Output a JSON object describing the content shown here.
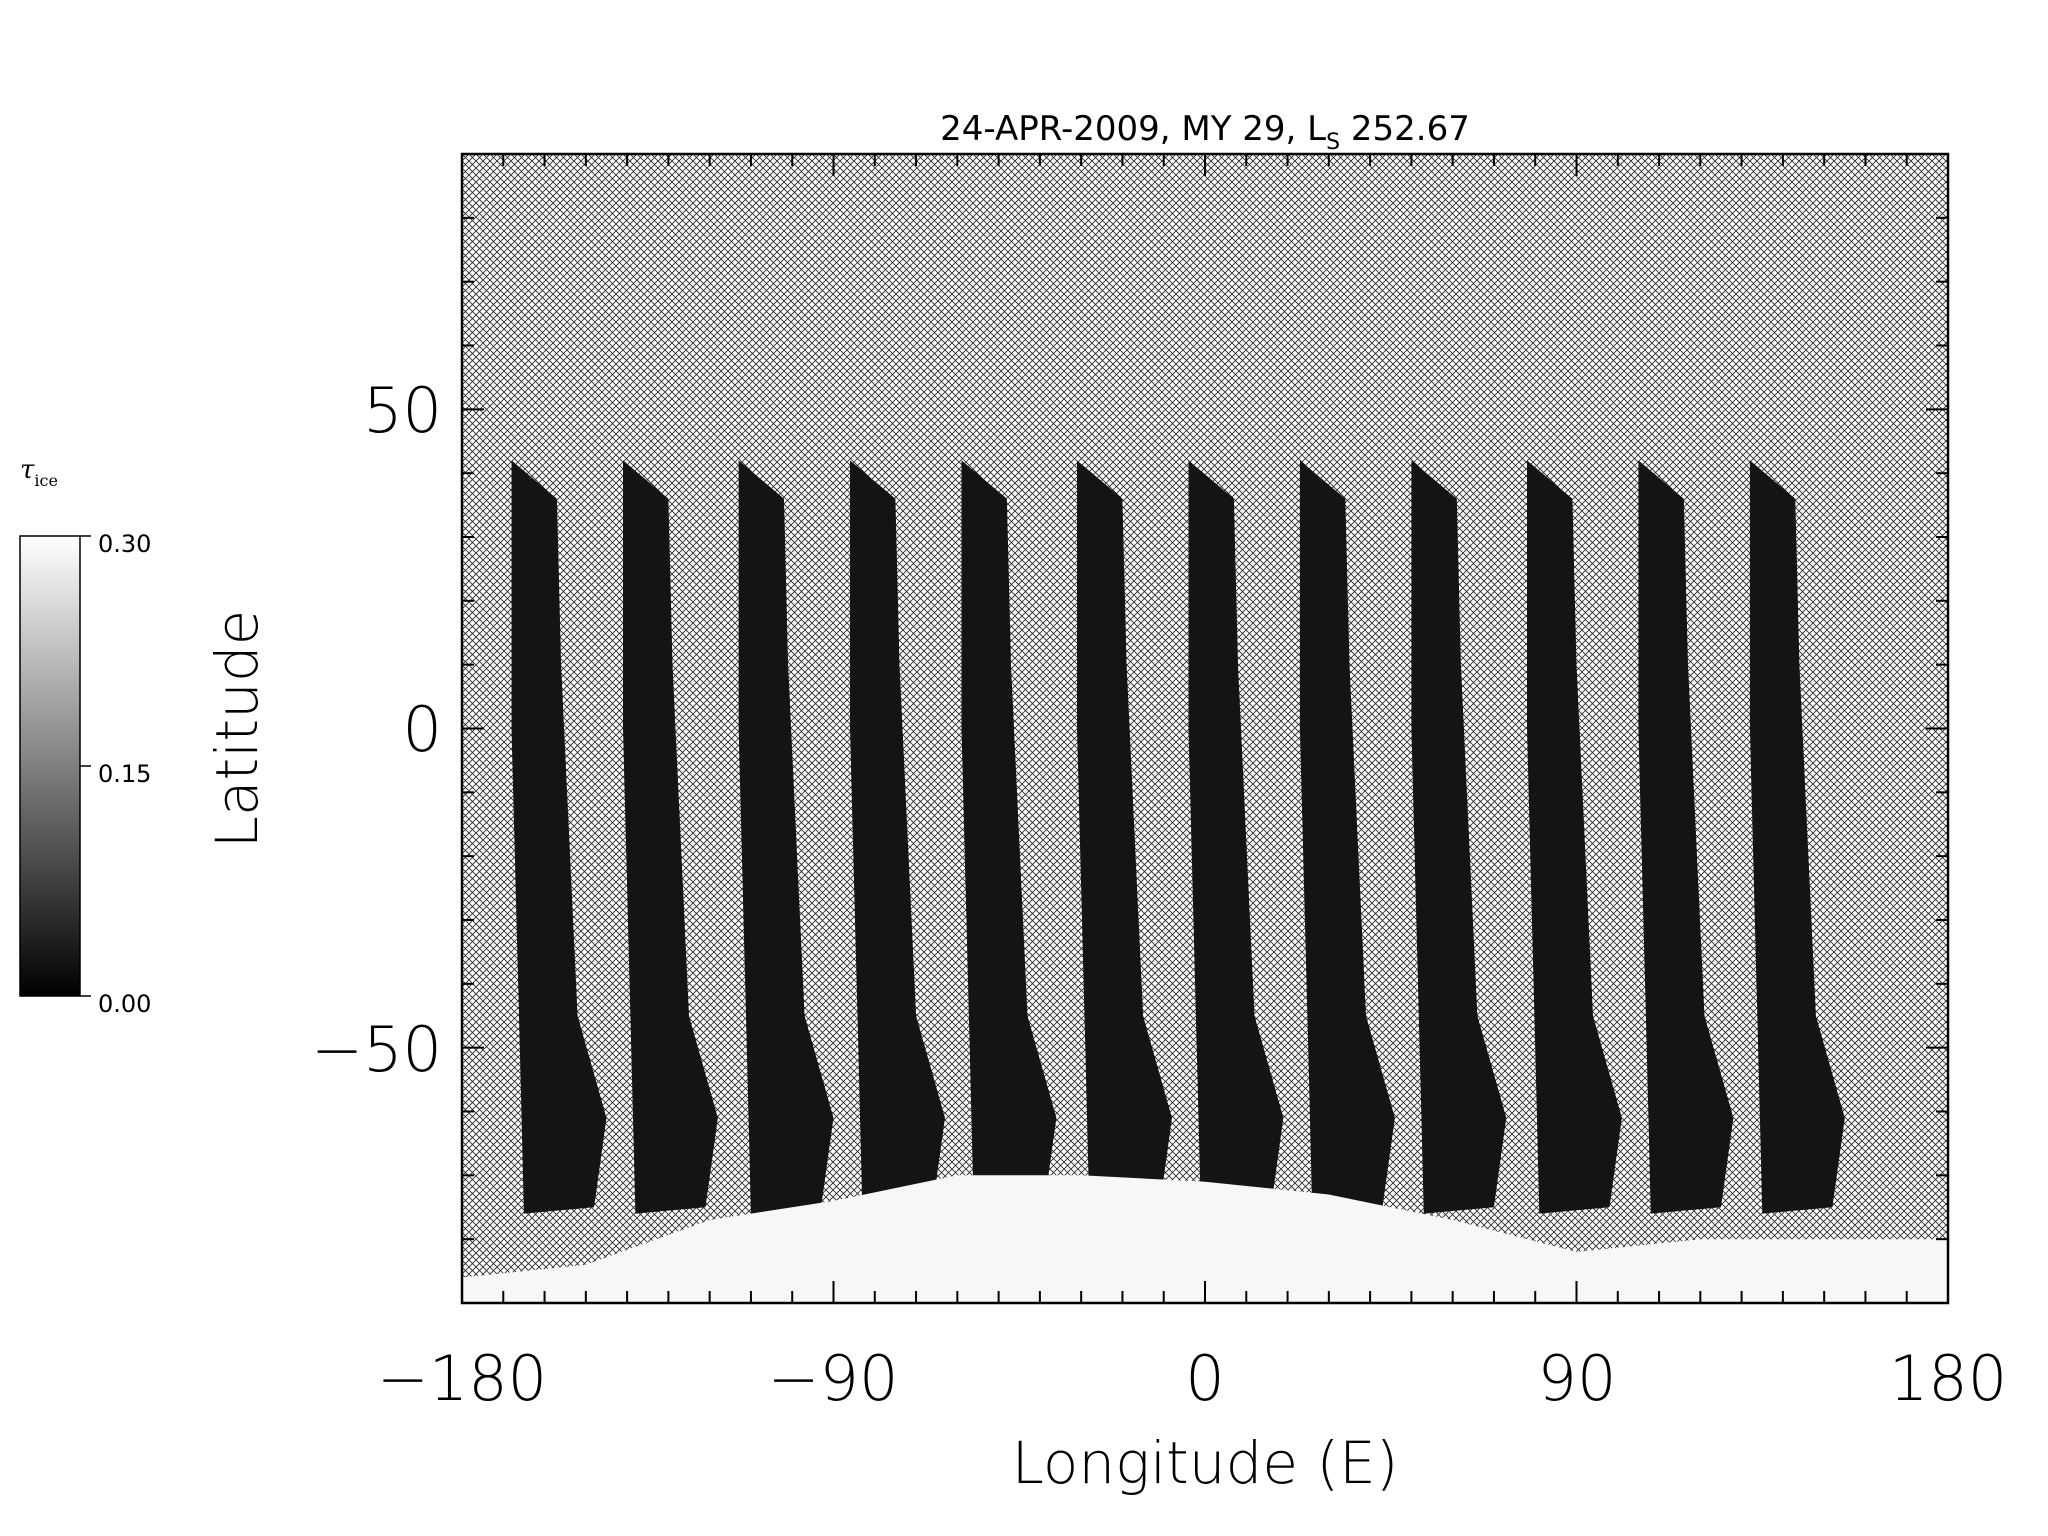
{
  "chart_data": {
    "type": "heatmap",
    "title": "24-APR-2009, MY 29,  L",
    "title_subscript": "S",
    "title_suffix": " 252.67",
    "xlabel": "Longitude (E)",
    "ylabel": "Latitude",
    "xlim": [
      -180,
      180
    ],
    "ylim": [
      -90,
      90
    ],
    "x_ticks": [
      "−180",
      "−90",
      "0",
      "90",
      "180"
    ],
    "x_tick_values": [
      -180,
      -90,
      0,
      90,
      180
    ],
    "y_ticks": [
      "−50",
      "0",
      "50"
    ],
    "y_tick_values": [
      -50,
      0,
      50
    ],
    "x_minor_step": 10,
    "y_minor_step": 10,
    "colorbar": {
      "symbol": "τ",
      "symbol_subscript": "ice",
      "min_label": "0.00",
      "mid_label": "0.15",
      "max_label": "0.30",
      "range": [
        0,
        0.3
      ],
      "colormap": "grayscale (black = 0.00, white = 0.30)"
    },
    "no_data_pattern": "cross-hatch",
    "swaths": {
      "count": 12,
      "approx_value": 0.0,
      "top_latitude": 42,
      "bottom_latitude": -76,
      "start_longitudes": [
        -168,
        -141,
        -113,
        -86,
        -59,
        -31,
        -4,
        23,
        50,
        78,
        105,
        132
      ]
    },
    "south_polar_region": {
      "approx_value": 0.3,
      "latitude_range": [
        -90,
        -70
      ]
    }
  },
  "colors": {
    "background": "#ffffff",
    "swath": "#141414",
    "hatch": "#2a2a2a",
    "ice": "#f7f7f7"
  }
}
